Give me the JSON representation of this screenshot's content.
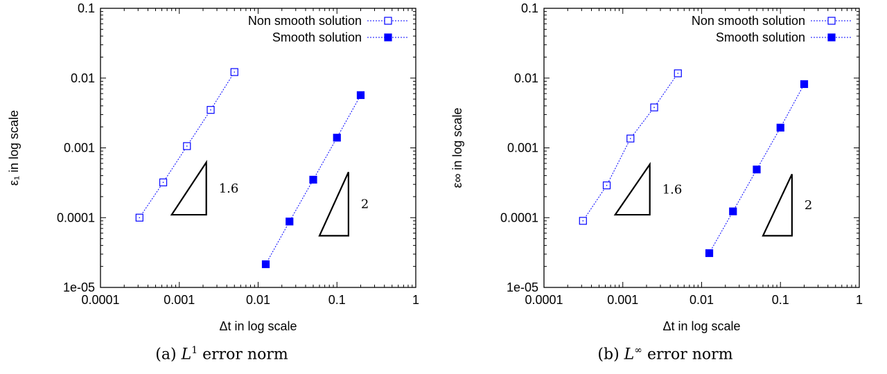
{
  "chart_data": [
    {
      "type": "scatter",
      "panel_label": "(a)",
      "norm_symbol": "L",
      "norm_sup": "1",
      "caption_rest": "error norm",
      "xlabel": "Δt in log scale",
      "ylabel": "ε₁ in log scale",
      "xscale": "log",
      "yscale": "log",
      "xlim": [
        0.0001,
        1
      ],
      "ylim": [
        1e-05,
        0.1
      ],
      "xticks": [
        0.0001,
        0.001,
        0.01,
        0.1,
        1
      ],
      "xtick_labels": [
        "0.0001",
        "0.001",
        "0.01",
        "0.1",
        "1"
      ],
      "yticks": [
        1e-05,
        0.0001,
        0.001,
        0.01,
        0.1
      ],
      "ytick_labels": [
        "1e-05",
        "0.0001",
        "0.001",
        "0.01",
        "0.1"
      ],
      "legend_position": "top-right",
      "series": [
        {
          "name": "Non smooth solution",
          "marker": "open-square",
          "color": "#0000ff",
          "x": [
            0.0003125,
            0.000625,
            0.00125,
            0.0025,
            0.005
          ],
          "y": [
            0.0001,
            0.00032,
            0.00106,
            0.0035,
            0.0122
          ]
        },
        {
          "name": "Smooth solution",
          "marker": "filled-square",
          "color": "#0000ff",
          "x": [
            0.0125,
            0.025,
            0.05,
            0.1,
            0.2
          ],
          "y": [
            2.15e-05,
            8.8e-05,
            0.00035,
            0.0014,
            0.0057
          ]
        }
      ],
      "annotations": [
        {
          "text": "1.6",
          "triangle_x": [
            0.0008,
            0.0022
          ],
          "triangle_y": [
            0.00011,
            0.00062
          ]
        },
        {
          "text": "2",
          "triangle_x": [
            0.06,
            0.14
          ],
          "triangle_y": [
            5.5e-05,
            0.00045
          ]
        }
      ]
    },
    {
      "type": "scatter",
      "panel_label": "(b)",
      "norm_symbol": "L",
      "norm_sup": "∞",
      "caption_rest": "error norm",
      "xlabel": "Δt in log scale",
      "ylabel": "ε∞ in log scale",
      "xscale": "log",
      "yscale": "log",
      "xlim": [
        0.0001,
        1
      ],
      "ylim": [
        1e-05,
        0.1
      ],
      "xticks": [
        0.0001,
        0.001,
        0.01,
        0.1,
        1
      ],
      "xtick_labels": [
        "0.0001",
        "0.001",
        "0.01",
        "0.1",
        "1"
      ],
      "yticks": [
        1e-05,
        0.0001,
        0.001,
        0.01,
        0.1
      ],
      "ytick_labels": [
        "1e-05",
        "0.0001",
        "0.001",
        "0.01",
        "0.1"
      ],
      "legend_position": "top-right",
      "series": [
        {
          "name": "Non smooth solution",
          "marker": "open-square",
          "color": "#0000ff",
          "x": [
            0.0003125,
            0.000625,
            0.00125,
            0.0025,
            0.005
          ],
          "y": [
            9e-05,
            0.00029,
            0.00136,
            0.0038,
            0.0117
          ]
        },
        {
          "name": "Smooth solution",
          "marker": "filled-square",
          "color": "#0000ff",
          "x": [
            0.0125,
            0.025,
            0.05,
            0.1,
            0.2
          ],
          "y": [
            3.1e-05,
            0.000123,
            0.00049,
            0.00195,
            0.0082
          ]
        }
      ],
      "annotations": [
        {
          "text": "1.6",
          "triangle_x": [
            0.0008,
            0.0022
          ],
          "triangle_y": [
            0.00011,
            0.00058
          ]
        },
        {
          "text": "2",
          "triangle_x": [
            0.06,
            0.14
          ],
          "triangle_y": [
            5.5e-05,
            0.00042
          ]
        }
      ]
    }
  ]
}
